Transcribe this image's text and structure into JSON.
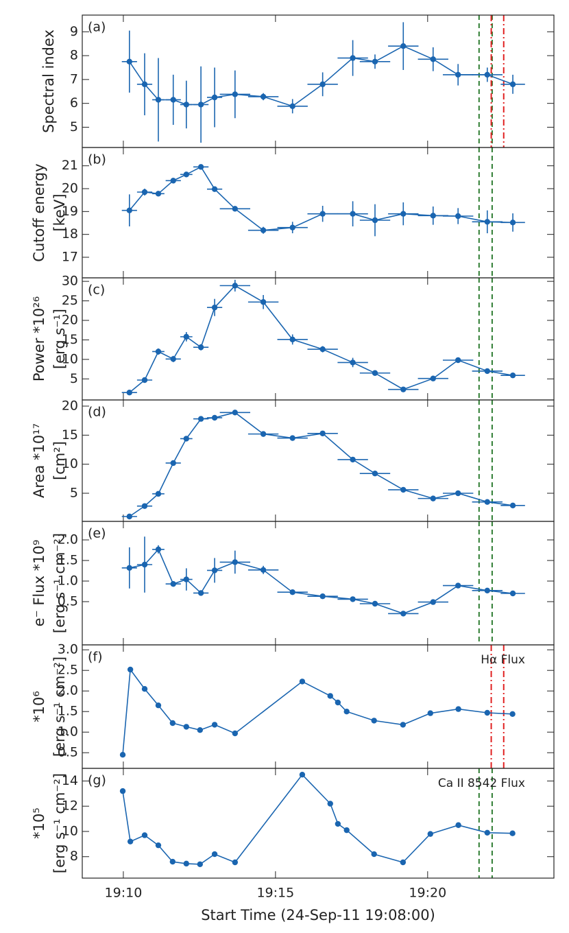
{
  "chart_data": [
    {
      "type": "errorbar",
      "panel_label": "(a)",
      "ylabel": [
        "Spectral index"
      ],
      "color": "#1a65b0",
      "x": [
        2.2,
        2.7,
        3.15,
        3.64,
        4.07,
        4.55,
        5.0,
        5.67,
        6.6,
        7.56,
        8.55,
        9.54,
        10.27,
        11.2,
        12.18,
        13.0,
        13.96,
        14.8
      ],
      "xerr": [
        0.25,
        0.25,
        0.2,
        0.25,
        0.2,
        0.25,
        0.25,
        0.5,
        0.5,
        0.5,
        0.5,
        0.5,
        0.5,
        0.5,
        0.5,
        0.5,
        0.5,
        0.4
      ],
      "values": [
        7.75,
        6.8,
        6.15,
        6.15,
        5.95,
        5.95,
        6.25,
        6.38,
        6.28,
        5.88,
        6.8,
        7.9,
        7.75,
        8.4,
        7.85,
        7.2,
        7.2,
        6.8
      ],
      "yerr": [
        1.3,
        1.3,
        1.75,
        1.05,
        1.0,
        1.6,
        1.25,
        1.0,
        0.15,
        0.3,
        0.5,
        0.75,
        0.3,
        1.0,
        0.5,
        0.45,
        0.3,
        0.4
      ],
      "xlim": [
        0.65,
        16.15
      ],
      "xticks": [
        2,
        7,
        12
      ],
      "ylim": [
        4.15,
        9.7
      ],
      "yticks": [
        5,
        6,
        7,
        8,
        9
      ],
      "vlines": [
        {
          "x": 13.69,
          "color": "#2e7d32",
          "style": "dashed"
        },
        {
          "x": 14.12,
          "color": "#2e7d32",
          "style": "dashed"
        },
        {
          "x": 14.09,
          "color": "#e02020",
          "style": "dashdot"
        },
        {
          "x": 14.5,
          "color": "#e02020",
          "style": "dashdot"
        }
      ]
    },
    {
      "type": "errorbar",
      "panel_label": "(b)",
      "ylabel": [
        "Cutoff energy",
        "[keV]"
      ],
      "color": "#1a65b0",
      "x": [
        2.2,
        2.7,
        3.15,
        3.64,
        4.07,
        4.55,
        5.0,
        5.67,
        6.6,
        7.56,
        8.55,
        9.54,
        10.27,
        11.2,
        12.18,
        13.0,
        13.96,
        14.8
      ],
      "xerr": [
        0.25,
        0.25,
        0.2,
        0.25,
        0.2,
        0.25,
        0.25,
        0.5,
        0.5,
        0.5,
        0.5,
        0.5,
        0.5,
        0.5,
        0.5,
        0.5,
        0.5,
        0.4
      ],
      "values": [
        19.05,
        19.85,
        19.78,
        20.35,
        20.62,
        20.95,
        19.98,
        19.12,
        18.18,
        18.3,
        18.9,
        18.9,
        18.62,
        18.9,
        18.82,
        18.8,
        18.55,
        18.52
      ],
      "yerr": [
        0.7,
        0.15,
        0.1,
        0.1,
        0.1,
        0.1,
        0.1,
        0.1,
        0.15,
        0.25,
        0.35,
        0.55,
        0.7,
        0.5,
        0.4,
        0.35,
        0.5,
        0.4
      ],
      "xlim": [
        0.65,
        16.15
      ],
      "xticks": [
        2,
        7,
        12
      ],
      "ylim": [
        16.1,
        21.8
      ],
      "yticks": [
        17,
        18,
        19,
        20,
        21
      ],
      "vlines": [
        {
          "x": 13.69,
          "color": "#2e7d32",
          "style": "dashed"
        },
        {
          "x": 14.12,
          "color": "#2e7d32",
          "style": "dashed"
        }
      ]
    },
    {
      "type": "errorbar",
      "panel_label": "(c)",
      "ylabel": [
        "Power *10²⁶",
        "[erg s⁻¹]"
      ],
      "color": "#1a65b0",
      "x": [
        2.2,
        2.7,
        3.15,
        3.64,
        4.07,
        4.55,
        5.0,
        5.67,
        6.6,
        7.56,
        8.55,
        9.54,
        10.27,
        11.2,
        12.18,
        13.0,
        13.96,
        14.8
      ],
      "xerr": [
        0.25,
        0.25,
        0.2,
        0.25,
        0.2,
        0.25,
        0.25,
        0.5,
        0.5,
        0.5,
        0.5,
        0.5,
        0.5,
        0.5,
        0.5,
        0.5,
        0.5,
        0.4
      ],
      "values": [
        1.5,
        4.7,
        12.0,
        10.1,
        15.8,
        13.1,
        23.3,
        28.9,
        24.7,
        15.1,
        12.6,
        9.2,
        6.5,
        2.3,
        5.1,
        9.8,
        7.0,
        5.9
      ],
      "yerr": [
        0.5,
        0.5,
        0.8,
        0.8,
        1.2,
        0.8,
        2.2,
        1.5,
        1.8,
        1.3,
        0.8,
        1.2,
        0.5,
        0.4,
        0.5,
        0.6,
        0.5,
        0.5
      ],
      "xlim": [
        0.65,
        16.15
      ],
      "xticks": [
        2,
        7,
        12
      ],
      "ylim": [
        -0.4,
        30.9
      ],
      "yticks": [
        5,
        10,
        15,
        20,
        25,
        30
      ],
      "vlines": [
        {
          "x": 13.69,
          "color": "#2e7d32",
          "style": "dashed"
        },
        {
          "x": 14.12,
          "color": "#2e7d32",
          "style": "dashed"
        }
      ]
    },
    {
      "type": "errorbar",
      "panel_label": "(d)",
      "ylabel": [
        "Area *10¹⁷",
        "[cm²]"
      ],
      "color": "#1a65b0",
      "x": [
        2.2,
        2.7,
        3.15,
        3.64,
        4.07,
        4.55,
        5.0,
        5.67,
        6.6,
        7.56,
        8.55,
        9.54,
        10.27,
        11.2,
        12.18,
        13.0,
        13.96,
        14.8
      ],
      "xerr": [
        0.25,
        0.25,
        0.2,
        0.25,
        0.2,
        0.25,
        0.25,
        0.5,
        0.5,
        0.5,
        0.5,
        0.5,
        0.5,
        0.5,
        0.5,
        0.5,
        0.5,
        0.4
      ],
      "values": [
        1.0,
        2.8,
        4.9,
        10.2,
        14.4,
        17.8,
        18.0,
        18.9,
        15.2,
        14.5,
        15.3,
        10.8,
        8.4,
        5.6,
        4.1,
        5.0,
        3.5,
        2.9
      ],
      "yerr": [
        0.3,
        0.3,
        0.3,
        0.4,
        0.4,
        0.4,
        0.4,
        0.4,
        0.3,
        0.3,
        0.3,
        0.3,
        0.3,
        0.3,
        0.3,
        0.3,
        0.3,
        0.3
      ],
      "xlim": [
        0.65,
        16.15
      ],
      "xticks": [
        2,
        7,
        12
      ],
      "ylim": [
        0.16,
        21.06
      ],
      "yticks": [
        5,
        10,
        15,
        20
      ],
      "vlines": [
        {
          "x": 13.69,
          "color": "#2e7d32",
          "style": "dashed"
        },
        {
          "x": 14.12,
          "color": "#2e7d32",
          "style": "dashed"
        }
      ]
    },
    {
      "type": "errorbar",
      "panel_label": "(e)",
      "ylabel": [
        "e⁻ Flux *10⁹",
        "[erg s⁻¹ cm⁻²]"
      ],
      "color": "#1a65b0",
      "x": [
        2.2,
        2.7,
        3.15,
        3.64,
        4.07,
        4.55,
        5.0,
        5.67,
        6.6,
        7.56,
        8.55,
        9.54,
        10.27,
        11.2,
        12.18,
        13.0,
        13.96,
        14.8
      ],
      "xerr": [
        0.25,
        0.25,
        0.2,
        0.25,
        0.2,
        0.25,
        0.25,
        0.5,
        0.5,
        0.5,
        0.5,
        0.5,
        0.5,
        0.5,
        0.5,
        0.5,
        0.5,
        0.4
      ],
      "values": [
        1.32,
        1.4,
        1.77,
        0.93,
        1.04,
        0.71,
        1.26,
        1.46,
        1.27,
        0.73,
        0.63,
        0.56,
        0.45,
        0.21,
        0.49,
        0.89,
        0.77,
        0.7
      ],
      "yerr": [
        0.5,
        0.68,
        0.1,
        0.04,
        0.27,
        0.04,
        0.3,
        0.28,
        0.1,
        0.03,
        0.03,
        0.05,
        0.03,
        0.03,
        0.03,
        0.04,
        0.04,
        0.03
      ],
      "xlim": [
        0.65,
        16.15
      ],
      "xticks": [
        2,
        7,
        12
      ],
      "ylim": [
        -0.55,
        2.45
      ],
      "yticks": [
        0.5,
        {
          "value": 1,
          "label": "1.0"
        },
        1.5,
        {
          "value": 2,
          "label": "2.0"
        }
      ],
      "vlines": [
        {
          "x": 13.69,
          "color": "#2e7d32",
          "style": "dashed"
        },
        {
          "x": 14.12,
          "color": "#2e7d32",
          "style": "dashed"
        }
      ]
    },
    {
      "type": "line",
      "panel_label": "(f)",
      "ylabel": [
        "*10⁶",
        "[erg s⁻¹ cm⁻²]"
      ],
      "annotation": "Hα Flux",
      "color": "#1a65b0",
      "x": [
        1.98,
        2.23,
        2.7,
        3.15,
        3.62,
        4.07,
        4.52,
        5.0,
        5.67,
        7.88,
        8.8,
        9.05,
        9.34,
        10.24,
        11.19,
        12.09,
        13.01,
        13.96,
        14.79
      ],
      "values": [
        0.45,
        2.52,
        2.05,
        1.65,
        1.22,
        1.13,
        1.05,
        1.18,
        0.97,
        2.23,
        1.88,
        1.72,
        1.5,
        1.28,
        1.18,
        1.46,
        1.56,
        1.47,
        1.44
      ],
      "xlim": [
        0.65,
        16.15
      ],
      "xticks": [
        2,
        7,
        12
      ],
      "ylim": [
        0.12,
        3.12
      ],
      "yticks": [
        0.5,
        {
          "value": 1,
          "label": "1.0"
        },
        1.5,
        {
          "value": 2,
          "label": "2.0"
        },
        2.5,
        {
          "value": 3,
          "label": "3.0"
        }
      ],
      "vlines": [
        {
          "x": 14.09,
          "color": "#e02020",
          "style": "dashdot"
        },
        {
          "x": 14.5,
          "color": "#e02020",
          "style": "dashdot"
        }
      ]
    },
    {
      "type": "line",
      "panel_label": "(g)",
      "ylabel": [
        "*10⁵",
        "[erg s⁻¹ cm⁻²]"
      ],
      "annotation": "Ca II 8542 Flux",
      "color": "#1a65b0",
      "x": [
        1.98,
        2.23,
        2.7,
        3.15,
        3.62,
        4.07,
        4.52,
        5.0,
        5.67,
        7.88,
        8.8,
        9.05,
        9.34,
        10.24,
        11.19,
        12.09,
        13.01,
        13.96,
        14.79
      ],
      "values": [
        13.2,
        9.2,
        9.7,
        8.9,
        7.6,
        7.45,
        7.4,
        8.2,
        7.55,
        14.5,
        12.2,
        10.6,
        10.1,
        8.2,
        7.55,
        9.8,
        10.5,
        9.9,
        9.85
      ],
      "xlim": [
        0.65,
        16.15
      ],
      "xticks": [
        {
          "value": 2,
          "label": "19:10"
        },
        {
          "value": 7,
          "label": "19:15"
        },
        {
          "value": 12,
          "label": "19:20"
        }
      ],
      "xlabel": "Start Time (24-Sep-11 19:08:00)",
      "ylim": [
        6.3,
        15.0
      ],
      "yticks": [
        8,
        10,
        12,
        14
      ],
      "vlines": [
        {
          "x": 13.69,
          "color": "#2e7d32",
          "style": "dashed"
        },
        {
          "x": 14.12,
          "color": "#2e7d32",
          "style": "dashed"
        }
      ]
    }
  ]
}
